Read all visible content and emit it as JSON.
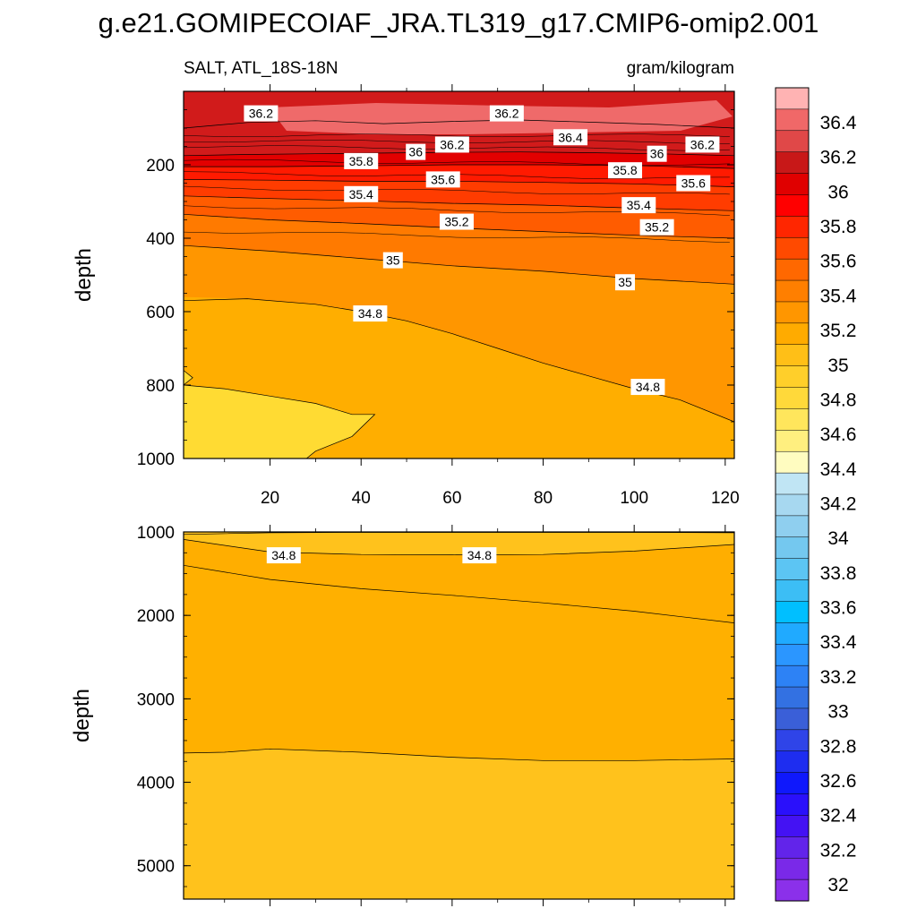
{
  "title": "g.e21.GOMIPECOIAF_JRA.TL319_g17.CMIP6-omip2.001",
  "subtitle_left": "SALT, ATL_18S-18N",
  "subtitle_right": "gram/kilogram",
  "chart_data": [
    {
      "type": "heatmap",
      "panel": "upper",
      "variable": "SALT",
      "region": "ATL_18S-18N",
      "units": "gram/kilogram",
      "xlabel": "",
      "ylabel": "depth",
      "xlim": [
        1,
        122
      ],
      "ylim": [
        1000,
        0
      ],
      "xticks": [
        20,
        40,
        60,
        80,
        100,
        120
      ],
      "yticks": [
        200,
        400,
        600,
        800,
        1000
      ],
      "contours": [
        {
          "level": 36.2,
          "x": [
            1,
            15,
            30,
            45,
            60,
            75,
            90,
            105,
            122
          ],
          "y": [
            100,
            85,
            80,
            88,
            82,
            78,
            84,
            90,
            100
          ]
        },
        {
          "level": 36.0,
          "x": [
            1,
            15,
            30,
            45,
            60,
            75,
            90,
            105,
            122
          ],
          "y": [
            175,
            172,
            170,
            168,
            166,
            165,
            167,
            170,
            175
          ]
        },
        {
          "level": 35.8,
          "x": [
            1,
            20,
            40,
            60,
            80,
            100,
            122
          ],
          "y": [
            205,
            205,
            203,
            200,
            200,
            202,
            210
          ]
        },
        {
          "level": 35.6,
          "x": [
            1,
            20,
            40,
            60,
            80,
            100,
            122
          ],
          "y": [
            240,
            242,
            245,
            245,
            248,
            252,
            260
          ]
        },
        {
          "level": 35.4,
          "x": [
            1,
            20,
            40,
            60,
            80,
            100,
            122
          ],
          "y": [
            285,
            292,
            298,
            305,
            310,
            318,
            325
          ]
        },
        {
          "level": 35.2,
          "x": [
            1,
            20,
            40,
            60,
            80,
            100,
            122
          ],
          "y": [
            335,
            350,
            360,
            372,
            382,
            392,
            400
          ]
        },
        {
          "level": 35.0,
          "x": [
            1,
            20,
            40,
            60,
            80,
            100,
            122
          ],
          "y": [
            420,
            435,
            455,
            475,
            490,
            510,
            525
          ]
        },
        {
          "level": 34.8,
          "x": [
            1,
            15,
            30,
            40,
            50,
            60,
            70,
            80,
            90,
            100,
            110,
            122
          ],
          "y": [
            570,
            565,
            580,
            600,
            625,
            660,
            700,
            740,
            775,
            810,
            840,
            900
          ]
        },
        {
          "level": 34.6,
          "x": [
            1,
            3,
            1,
            10,
            20,
            30,
            38,
            43,
            38,
            30,
            28
          ],
          "y": [
            760,
            780,
            800,
            810,
            830,
            850,
            880,
            880,
            940,
            980,
            1000
          ]
        }
      ],
      "contour_labels": [
        {
          "text": "36.2",
          "x": 18,
          "y": 60
        },
        {
          "text": "36.2",
          "x": 72,
          "y": 60
        },
        {
          "text": "36.4",
          "x": 86,
          "y": 125
        },
        {
          "text": "36.2",
          "x": 60,
          "y": 145
        },
        {
          "text": "36.2",
          "x": 115,
          "y": 145
        },
        {
          "text": "36",
          "x": 52,
          "y": 165
        },
        {
          "text": "36",
          "x": 105,
          "y": 170
        },
        {
          "text": "35.8",
          "x": 40,
          "y": 190
        },
        {
          "text": "35.8",
          "x": 98,
          "y": 215
        },
        {
          "text": "35.6",
          "x": 58,
          "y": 240
        },
        {
          "text": "35.6",
          "x": 113,
          "y": 250
        },
        {
          "text": "35.4",
          "x": 40,
          "y": 280
        },
        {
          "text": "35.4",
          "x": 101,
          "y": 310
        },
        {
          "text": "35.2",
          "x": 61,
          "y": 355
        },
        {
          "text": "35.2",
          "x": 105,
          "y": 370
        },
        {
          "text": "35",
          "x": 47,
          "y": 460
        },
        {
          "text": "35",
          "x": 98,
          "y": 520
        },
        {
          "text": "34.8",
          "x": 42,
          "y": 605
        },
        {
          "text": "34.8",
          "x": 103,
          "y": 805
        }
      ]
    },
    {
      "type": "heatmap",
      "panel": "lower",
      "variable": "SALT",
      "region": "ATL_18S-18N",
      "units": "gram/kilogram",
      "xlabel": "",
      "ylabel": "depth",
      "xlim": [
        1,
        122
      ],
      "ylim": [
        5400,
        1000
      ],
      "xticks": [
        20,
        40,
        60,
        80,
        100,
        120
      ],
      "yticks": [
        1000,
        2000,
        3000,
        4000,
        5000
      ],
      "contours": [
        {
          "level": 34.8,
          "x": [
            1,
            20,
            40,
            60,
            80,
            100,
            122
          ],
          "y": [
            1030,
            1010,
            1005,
            1005,
            1005,
            1005,
            1010
          ]
        },
        {
          "level": 34.8,
          "x": [
            1,
            20,
            40,
            60,
            80,
            100,
            122
          ],
          "y": [
            1090,
            1240,
            1270,
            1275,
            1270,
            1230,
            1150
          ]
        },
        {
          "level": 34.8,
          "x": [
            1,
            20,
            40,
            60,
            80,
            100,
            122
          ],
          "y": [
            1400,
            1570,
            1680,
            1760,
            1850,
            1950,
            2090
          ]
        },
        {
          "level": 34.8,
          "x": [
            1,
            10,
            20,
            40,
            60,
            80,
            100,
            122
          ],
          "y": [
            3650,
            3640,
            3600,
            3640,
            3700,
            3740,
            3740,
            3720
          ]
        }
      ],
      "contour_labels": [
        {
          "text": "34.8",
          "x": 23,
          "y": 1280
        },
        {
          "text": "34.8",
          "x": 66,
          "y": 1280
        }
      ]
    }
  ],
  "colorbar": {
    "labels": [
      "36.4",
      "36.2",
      "36",
      "35.8",
      "35.6",
      "35.4",
      "35.2",
      "35",
      "34.8",
      "34.6",
      "34.4",
      "34.2",
      "34",
      "33.8",
      "33.6",
      "33.4",
      "33.2",
      "33",
      "32.8",
      "32.6",
      "32.4",
      "32.2",
      "32"
    ],
    "colors": [
      "#ffb3b3",
      "#f06868",
      "#e04848",
      "#c81818",
      "#e00000",
      "#ff0000",
      "#ff2600",
      "#ff4a00",
      "#ff6800",
      "#ff7f00",
      "#ff9600",
      "#ffab00",
      "#ffbf17",
      "#ffcf2a",
      "#ffd93a",
      "#ffe65c",
      "#ffef7f",
      "#fffcc0",
      "#c0e5f4",
      "#a7d8f0",
      "#8fcfef",
      "#74c8ef",
      "#5cc5f3",
      "#3cbef5",
      "#00bfff",
      "#20aaff",
      "#2b96ff",
      "#2d82f5",
      "#3371e2",
      "#3a5fd8",
      "#2f44e8",
      "#1e2df0",
      "#0f18fc",
      "#2a10fb",
      "#4412f3",
      "#6224ea",
      "#7a29e8",
      "#8b30ea"
    ]
  },
  "fill_colors": {
    "s362": "#ef6a6a",
    "s360": "#d11b1b",
    "s358": "#e20000",
    "s356": "#ff1a00",
    "s354": "#ff3c00",
    "s352": "#ff5c00",
    "s350": "#ff7a00",
    "s348": "#ff9600",
    "s346": "#ffae00",
    "s344": "#ffc21c",
    "s342": "#ffdb33",
    "deep1": "#ffc21c",
    "deep2": "#ffae00",
    "deep3": "#ffb000",
    "deep4": "#ffc21c"
  }
}
